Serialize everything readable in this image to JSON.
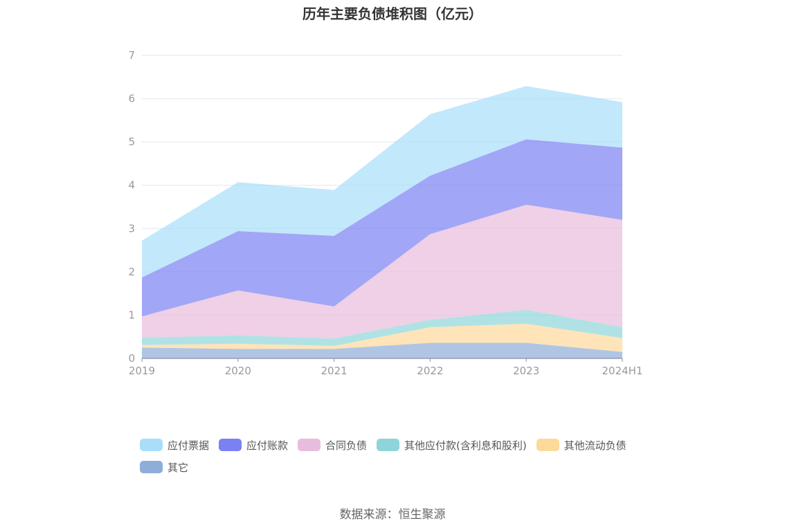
{
  "title": "历年主要负债堆积图（亿元）",
  "source": "数据来源：恒生聚源",
  "chart_data": {
    "type": "area",
    "stacked": true,
    "title": "历年主要负债堆积图（亿元）",
    "x": [
      "2019",
      "2020",
      "2021",
      "2022",
      "2023",
      "2024H1"
    ],
    "ylim": [
      0,
      7
    ],
    "yticks": [
      0,
      1,
      2,
      3,
      4,
      5,
      6,
      7
    ],
    "grid": true,
    "legend_position": "bottom",
    "series": [
      {
        "name": "其它",
        "color": "#8fadd9",
        "values": [
          0.25,
          0.22,
          0.22,
          0.36,
          0.36,
          0.15
        ]
      },
      {
        "name": "其他流动负债",
        "color": "#fdd99a",
        "values": [
          0.06,
          0.12,
          0.07,
          0.36,
          0.44,
          0.32
        ]
      },
      {
        "name": "其他应付款(含利息和股利)",
        "color": "#8ed5da",
        "values": [
          0.17,
          0.19,
          0.17,
          0.17,
          0.32,
          0.25
        ]
      },
      {
        "name": "合同负债",
        "color": "#e8bcdc",
        "values": [
          0.49,
          1.04,
          0.74,
          1.98,
          2.43,
          2.48
        ]
      },
      {
        "name": "应付账款",
        "color": "#7b80f2",
        "values": [
          0.9,
          1.37,
          1.63,
          1.35,
          1.51,
          1.67
        ]
      },
      {
        "name": "应付票据",
        "color": "#a8defa",
        "values": [
          0.85,
          1.13,
          1.06,
          1.42,
          1.23,
          1.05
        ]
      }
    ],
    "legend_order": [
      "应付票据",
      "应付账款",
      "合同负债",
      "其他应付款(含利息和股利)",
      "其他流动负债",
      "其它"
    ]
  }
}
